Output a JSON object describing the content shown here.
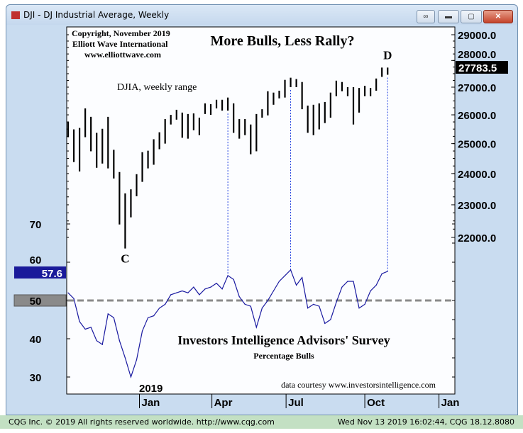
{
  "window": {
    "title": "DJI - DJ Industrial Average, Weekly",
    "buttons": [
      "link",
      "minimize",
      "maximize",
      "close"
    ]
  },
  "status_bar": {
    "left": "CQG Inc. © 2019 All rights reserved worldwide. http://www.cqg.com",
    "right": "Wed Nov 13 2019 16:02:44, CQG 18.12.8080"
  },
  "chart_data": {
    "type": "bar",
    "title": "More Bulls, Less Rally?",
    "copyright": [
      "Copyright, November 2019",
      "Elliott Wave International",
      "www.elliottwave.com"
    ],
    "price_panel": {
      "label": "DJIA, weekly range",
      "y_ticks": [
        "29000.0",
        "28000.0",
        "27000.0",
        "26000.0",
        "25000.0",
        "24000.0",
        "23000.0",
        "22000.0"
      ],
      "y_tick_values": [
        29000,
        28000,
        27000,
        26000,
        25000,
        24000,
        23000,
        22000
      ],
      "last_value": "27783.5",
      "last": 27783.5,
      "annotations": [
        {
          "text": "C",
          "bar": 10
        },
        {
          "text": "D",
          "bar": 56
        }
      ],
      "high": [
        25760,
        25490,
        25540,
        26230,
        25930,
        25370,
        25510,
        25930,
        24790,
        24050,
        23360,
        23490,
        23980,
        24710,
        24760,
        25150,
        25390,
        25850,
        26000,
        26180,
        26080,
        26030,
        26050,
        25900,
        26410,
        26380,
        26540,
        26540,
        26620,
        26410,
        25850,
        25850,
        25660,
        26030,
        26200,
        26850,
        26800,
        26870,
        27270,
        27350,
        27300,
        27190,
        26330,
        26360,
        26410,
        26460,
        26800,
        27240,
        27190,
        27000,
        27000,
        26970,
        27050,
        26970,
        27320,
        27730,
        27730
      ],
      "low": [
        25220,
        24380,
        24070,
        25220,
        24740,
        24190,
        24330,
        24170,
        23840,
        22390,
        21670,
        22610,
        23270,
        23730,
        24170,
        24290,
        24810,
        25000,
        25660,
        25830,
        25200,
        25170,
        25460,
        25290,
        26030,
        26000,
        26230,
        26150,
        26150,
        25370,
        25170,
        25290,
        24640,
        24740,
        25900,
        25980,
        26360,
        26590,
        26620,
        27000,
        27000,
        26200,
        25370,
        25290,
        25490,
        25710,
        25900,
        26670,
        26850,
        26670,
        25660,
        26080,
        26670,
        26670,
        26870,
        27380,
        27460
      ]
    },
    "sentiment_panel": {
      "title": "Investors Intelligence Advisors' Survey",
      "subtitle": "Percentage Bulls",
      "source": "data courtesy www.investorsintelligence.com",
      "y_ticks": [
        "70",
        "60",
        "50",
        "40",
        "30"
      ],
      "y_tick_values": [
        70,
        60,
        50,
        40,
        30
      ],
      "reference_line": 50,
      "reference_label": "50",
      "last_value": "57.6",
      "last": 57.6,
      "values": [
        52,
        50.5,
        44.5,
        42.5,
        43,
        39.5,
        38.5,
        46.5,
        45.5,
        39.5,
        35,
        30,
        34.5,
        42,
        45.5,
        46,
        48,
        49,
        51.5,
        52,
        52.5,
        52,
        53.5,
        51.5,
        53,
        53.5,
        54.5,
        53,
        56.5,
        55.5,
        51,
        49,
        48.5,
        43,
        48,
        50,
        52.5,
        55,
        56.5,
        58,
        54,
        56,
        48,
        49,
        48.5,
        44,
        45,
        49.5,
        53.5,
        55,
        55,
        48,
        49,
        52.5,
        54,
        57,
        57.6
      ]
    },
    "peak_links": [
      28,
      39,
      56
    ],
    "x_labels": [
      "Jan",
      "Apr",
      "Jul",
      "Oct",
      "Jan"
    ],
    "x_label_weeks": [
      12.5,
      25.2,
      38.2,
      52,
      65
    ],
    "year_label": "2019",
    "colors": {
      "bars": "#000000",
      "sentiment": "#1a1aa0",
      "reference": "#8a8a8a",
      "links": "#2040e0",
      "last_price_bg": "#000000",
      "last_sent_bg": "#1a1a9a",
      "ref_box_bg": "#8a8a8a"
    }
  }
}
